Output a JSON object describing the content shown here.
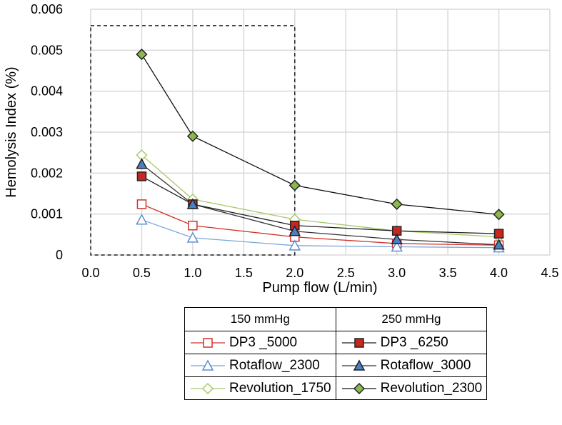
{
  "chart_data": {
    "type": "line",
    "xlabel": "Pump flow (L/min)",
    "ylabel": "Hemolysis Index (%)",
    "xlim": [
      0,
      4.5
    ],
    "ylim": [
      0,
      0.006
    ],
    "xticks": [
      "0.0",
      "0.5",
      "1.0",
      "1.5",
      "2.0",
      "2.5",
      "3.0",
      "3.5",
      "4.0",
      "4.5"
    ],
    "yticks": [
      "0",
      "0.001",
      "0.002",
      "0.003",
      "0.004",
      "0.005",
      "0.006"
    ],
    "grid": true,
    "x": [
      0.5,
      1.0,
      2.0,
      3.0,
      4.0
    ],
    "highlight_box": {
      "x": [
        0,
        2.0
      ],
      "y": [
        0,
        0.0056
      ]
    },
    "legend_groups": [
      "150 mmHg",
      "250 mmHg"
    ],
    "series": [
      {
        "name": "DP3 _5000",
        "group": 0,
        "marker": "square",
        "filled": false,
        "color": "#d0332a",
        "line": "#d0332a",
        "values": [
          0.00124,
          0.00072,
          0.00044,
          0.00028,
          0.00024
        ]
      },
      {
        "name": "DP3 _6250",
        "group": 1,
        "marker": "square",
        "filled": true,
        "color": "#c8261e",
        "line": "#222222",
        "values": [
          0.00192,
          0.00124,
          0.00072,
          0.00059,
          0.00052
        ]
      },
      {
        "name": "Rotaflow_2300",
        "group": 0,
        "marker": "triangle",
        "filled": false,
        "color": "#5b8fd0",
        "line": "#7aa6dc",
        "values": [
          0.00086,
          0.00042,
          0.00023,
          0.0002,
          0.00018
        ]
      },
      {
        "name": "Rotaflow_3000",
        "group": 1,
        "marker": "triangle",
        "filled": true,
        "color": "#4a7fc4",
        "line": "#333333",
        "values": [
          0.00222,
          0.00124,
          0.00058,
          0.00038,
          0.00025
        ]
      },
      {
        "name": "Revolution_1750",
        "group": 0,
        "marker": "diamond",
        "filled": false,
        "color": "#a6c96a",
        "line": "#a6c96a",
        "values": [
          0.00244,
          0.00136,
          0.00087,
          0.00059,
          0.00044
        ]
      },
      {
        "name": "Revolution_2300",
        "group": 1,
        "marker": "diamond",
        "filled": true,
        "color": "#8bb84a",
        "line": "#111111",
        "values": [
          0.0049,
          0.0029,
          0.0017,
          0.00124,
          0.00099
        ]
      }
    ]
  }
}
